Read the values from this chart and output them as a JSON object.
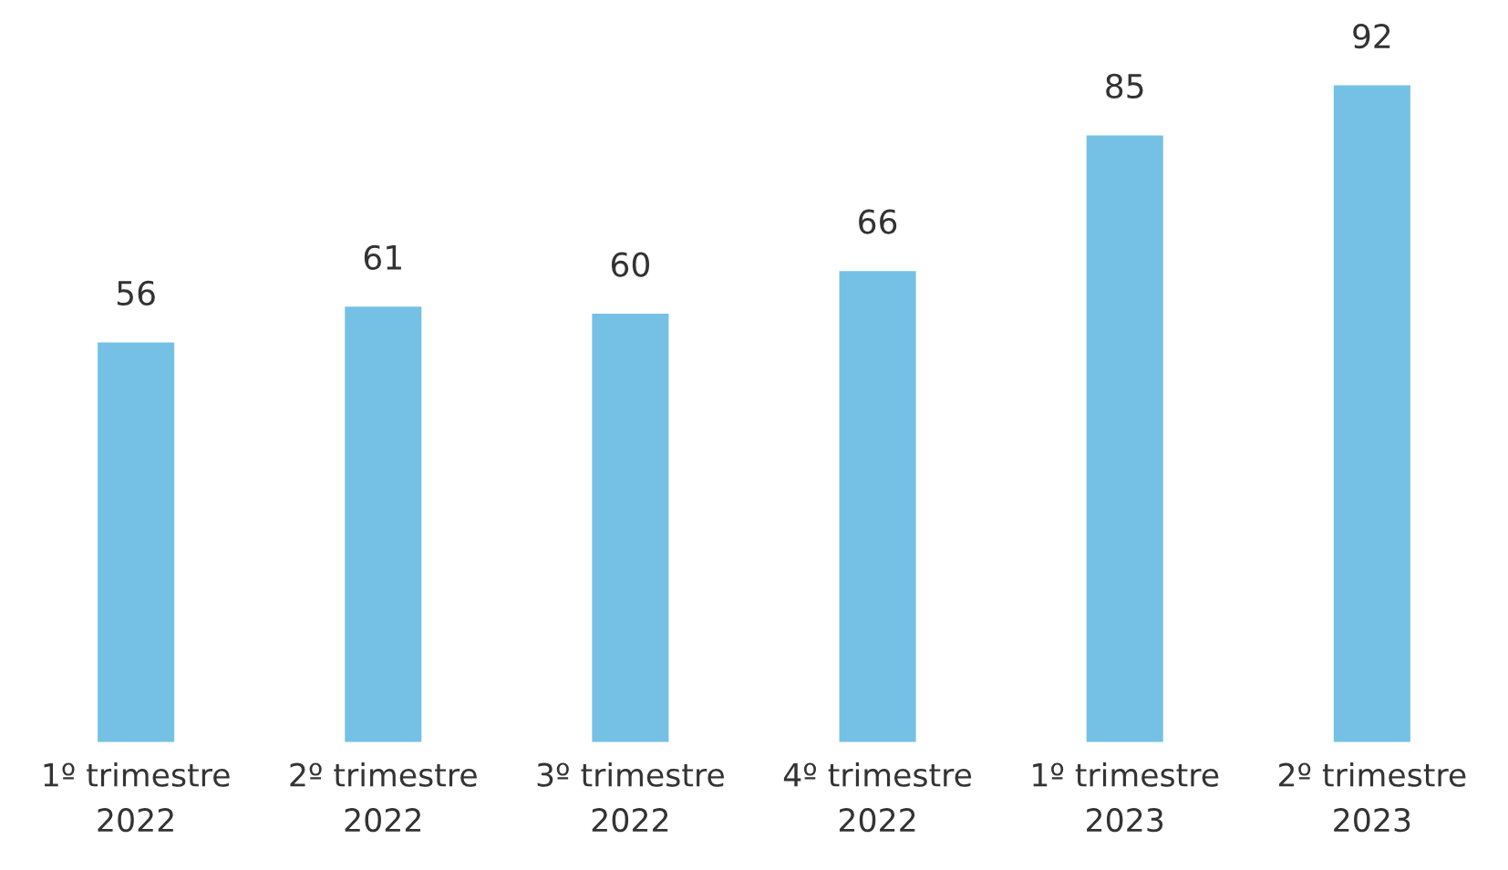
{
  "chart_data": {
    "type": "bar",
    "categories": [
      "1º trimestre\n2022",
      "2º trimestre\n2022",
      "3º trimestre\n2022",
      "4º trimestre\n2022",
      "1º trimestre\n2023",
      "2º trimestre\n2023"
    ],
    "values": [
      56,
      61,
      60,
      66,
      85,
      92
    ],
    "color": "#74c1e5",
    "data_labels": true,
    "grid": false,
    "legend": false
  }
}
